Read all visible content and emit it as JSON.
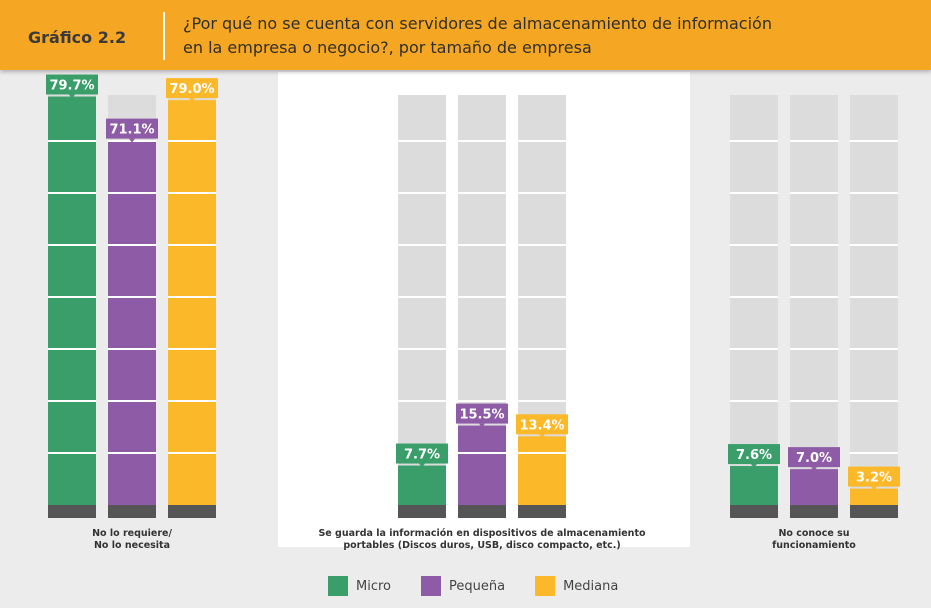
{
  "chart_data": {
    "type": "bar",
    "label": "Gráfico 2.2",
    "title": "¿Por qué no se cuenta con servidores de almacenamiento de información\nen la empresa o negocio?, por tamaño de empresa",
    "categories": [
      "No lo requiere/\nNo lo necesita",
      "Se guarda la información en dispositivos de almacenamiento\nportables (Discos duros, USB, disco compacto, etc.)",
      "No conoce su\nfuncionamiento"
    ],
    "series": [
      {
        "name": "Micro",
        "color": "#3a9e6a",
        "values": [
          79.7,
          7.7,
          7.6
        ],
        "value_labels": [
          "79.7%",
          "7.7%",
          "7.6%"
        ]
      },
      {
        "name": "Pequeña",
        "color": "#8e5ba6",
        "values": [
          71.1,
          15.5,
          7.0
        ],
        "value_labels": [
          "71.1%",
          "15.5%",
          "7.0%"
        ]
      },
      {
        "name": "Mediana",
        "color": "#fbb829",
        "values": [
          79.0,
          13.4,
          3.2
        ],
        "value_labels": [
          "79.0%",
          "13.4%",
          "3.2%"
        ]
      }
    ],
    "ylim": [
      0,
      80
    ],
    "legend": "bottom"
  }
}
